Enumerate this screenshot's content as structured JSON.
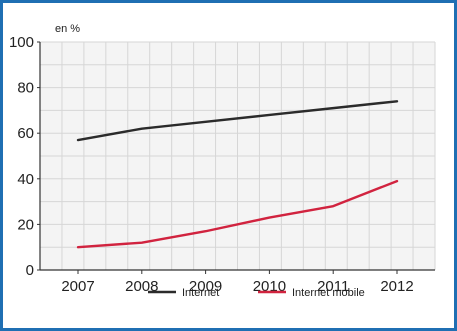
{
  "chart_data": {
    "type": "line",
    "title": "",
    "ylabel": "en %",
    "xlabel": "",
    "x": [
      2007,
      2008,
      2009,
      2010,
      2011,
      2012
    ],
    "ylim": [
      0,
      100
    ],
    "y_ticks": [
      0,
      20,
      40,
      60,
      80,
      100
    ],
    "grid": true,
    "legend_position": "bottom",
    "series": [
      {
        "name": "Internet",
        "color": "#2b2b2b",
        "values": [
          57,
          62,
          65,
          68,
          71,
          74
        ]
      },
      {
        "name": "Internet mobile",
        "color": "#d1233f",
        "values": [
          10,
          12,
          17,
          23,
          28,
          39
        ]
      }
    ]
  }
}
